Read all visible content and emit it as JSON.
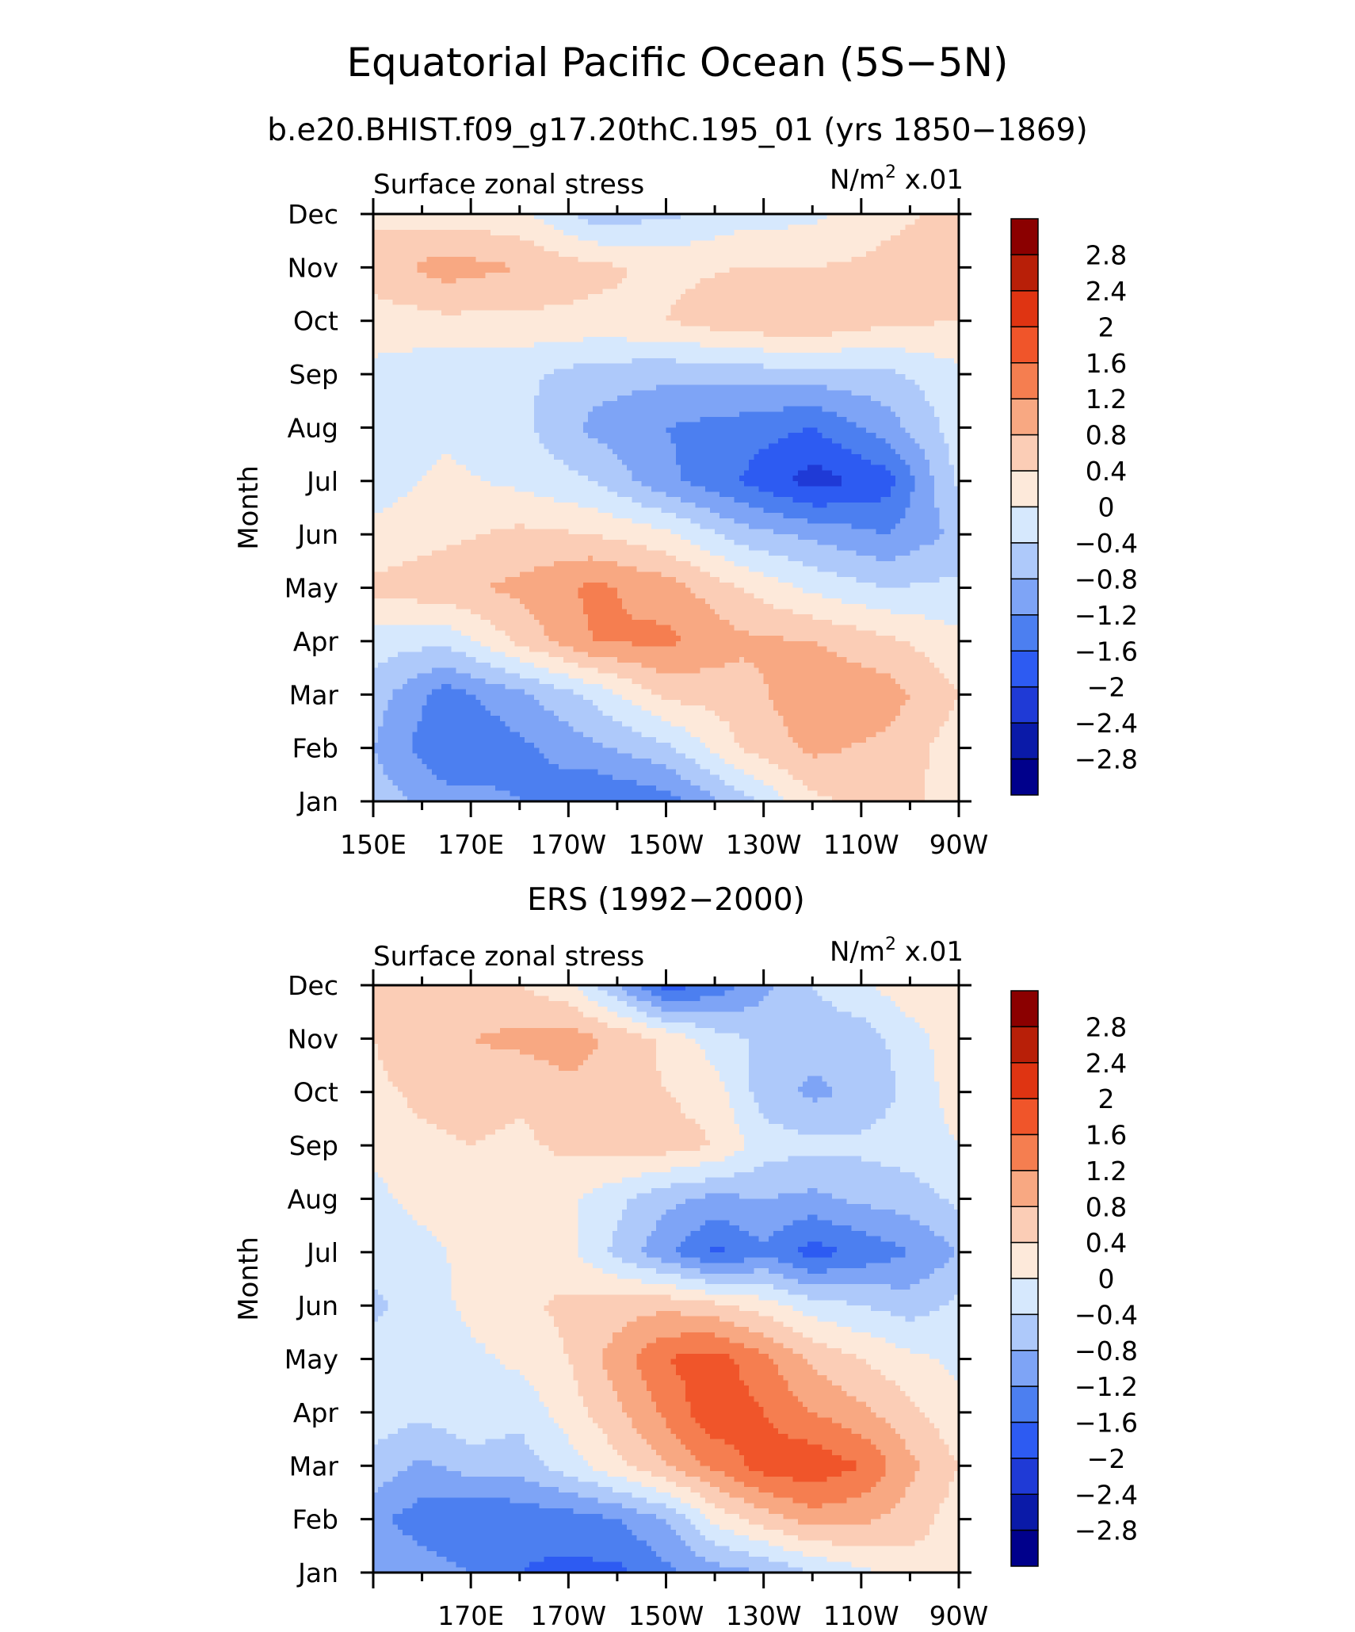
{
  "figure": {
    "title": "Equatorial Pacific Ocean (5S−5N)",
    "subtitle": "b.e20.BHIST.f09_g17.20thC.195_01 (yrs 1850−1869)"
  },
  "chart_data": [
    {
      "type": "heatmap",
      "panel_title": "",
      "left_label": "Surface zonal stress",
      "units": {
        "base": "N/m",
        "sup": "2",
        "scale": " x.01"
      },
      "ylabel": "Month",
      "y_categories": [
        "Jan",
        "Feb",
        "Mar",
        "Apr",
        "May",
        "Jun",
        "Jul",
        "Aug",
        "Sep",
        "Oct",
        "Nov",
        "Dec"
      ],
      "x_ticklabels": [
        "150E",
        "170E",
        "170W",
        "150W",
        "130W",
        "110W",
        "90W"
      ],
      "x_tick_lon": [
        150,
        170,
        190,
        210,
        230,
        250,
        270
      ],
      "xlim": [
        150,
        270
      ],
      "ylim": [
        1,
        12
      ],
      "levels": [
        -2.8,
        -2.4,
        -2,
        -1.6,
        -1.2,
        -0.8,
        -0.4,
        0,
        0.4,
        0.8,
        1.2,
        1.6,
        2,
        2.4,
        2.8
      ],
      "colorbar_labels": [
        "2.8",
        "2.4",
        "2",
        "1.6",
        "1.2",
        "0.8",
        "0.4",
        "0",
        "−0.4",
        "−0.8",
        "−1.2",
        "−1.6",
        "−2",
        "−2.4",
        "−2.8"
      ],
      "colors": [
        "#00008b",
        "#0a1aa8",
        "#1f3ad6",
        "#2d5bf2",
        "#4c7ff0",
        "#7ea4f6",
        "#aec9fa",
        "#d6e8fd",
        "#fde9da",
        "#fbcdb6",
        "#f8a882",
        "#f57e50",
        "#f0552a",
        "#df3412",
        "#b81f08",
        "#8b0000"
      ],
      "grid_lon": [
        150,
        165,
        180,
        195,
        210,
        225,
        240,
        255,
        270
      ],
      "grid_month": [
        1,
        2,
        3,
        4,
        5,
        6,
        7,
        8,
        9,
        10,
        11,
        12
      ],
      "z": [
        [
          -0.6,
          -1.0,
          -1.2,
          -1.6,
          -1.4,
          -0.6,
          0.3,
          0.6,
          0.2
        ],
        [
          -0.8,
          -1.6,
          -1.3,
          -0.9,
          -0.5,
          0.4,
          0.9,
          0.7,
          0.2
        ],
        [
          -0.6,
          -1.4,
          -0.9,
          -0.3,
          0.5,
          0.6,
          1.1,
          1.0,
          0.4
        ],
        [
          -0.2,
          -0.3,
          0.5,
          1.2,
          1.3,
          0.9,
          0.8,
          0.5,
          0.1
        ],
        [
          0.5,
          0.7,
          0.9,
          1.3,
          1.0,
          0.4,
          -0.1,
          -0.4,
          -0.3
        ],
        [
          0.1,
          0.3,
          0.5,
          0.4,
          0.1,
          -0.6,
          -0.9,
          -1.2,
          -0.7
        ],
        [
          -0.2,
          0.1,
          -0.1,
          -0.4,
          -1.1,
          -1.6,
          -2.2,
          -1.8,
          -0.3
        ],
        [
          -0.3,
          -0.1,
          -0.3,
          -0.9,
          -1.2,
          -1.4,
          -1.6,
          -1.0,
          -0.2
        ],
        [
          -0.1,
          -0.3,
          -0.3,
          -0.6,
          -0.7,
          -0.6,
          -0.6,
          -0.5,
          -0.1
        ],
        [
          0.2,
          0.3,
          0.3,
          0.3,
          0.4,
          0.7,
          0.8,
          0.5,
          0.4
        ],
        [
          0.6,
          1.0,
          0.8,
          0.5,
          0.3,
          0.4,
          0.4,
          0.5,
          0.6
        ],
        [
          0.3,
          0.2,
          0.1,
          -0.6,
          -0.5,
          -0.2,
          -0.1,
          0.3,
          0.5
        ]
      ]
    },
    {
      "type": "heatmap",
      "panel_title": "ERS (1992−2000)",
      "left_label": "Surface zonal stress",
      "units": {
        "base": "N/m",
        "sup": "2",
        "scale": " x.01"
      },
      "ylabel": "Month",
      "y_categories": [
        "Jan",
        "Feb",
        "Mar",
        "Apr",
        "May",
        "Jun",
        "Jul",
        "Aug",
        "Sep",
        "Oct",
        "Nov",
        "Dec"
      ],
      "x_ticklabels": [
        "170E",
        "170W",
        "150W",
        "130W",
        "110W",
        "90W"
      ],
      "x_tick_lon": [
        170,
        190,
        210,
        230,
        250,
        270
      ],
      "xlim": [
        150,
        270
      ],
      "ylim": [
        1,
        12
      ],
      "levels": [
        -2.8,
        -2.4,
        -2,
        -1.6,
        -1.2,
        -0.8,
        -0.4,
        0,
        0.4,
        0.8,
        1.2,
        1.6,
        2,
        2.4,
        2.8
      ],
      "colorbar_labels": [
        "2.8",
        "2.4",
        "2",
        "1.6",
        "1.2",
        "0.8",
        "0.4",
        "0",
        "−0.4",
        "−0.8",
        "−1.2",
        "−1.6",
        "−2",
        "−2.4",
        "−2.8"
      ],
      "colors": [
        "#00008b",
        "#0a1aa8",
        "#1f3ad6",
        "#2d5bf2",
        "#4c7ff0",
        "#7ea4f6",
        "#aec9fa",
        "#d6e8fd",
        "#fde9da",
        "#fbcdb6",
        "#f8a882",
        "#f57e50",
        "#f0552a",
        "#df3412",
        "#b81f08",
        "#8b0000"
      ],
      "grid_lon": [
        150,
        160,
        170,
        180,
        190,
        200,
        210,
        220,
        230,
        240,
        250,
        260,
        270
      ],
      "grid_month": [
        1,
        2,
        3,
        4,
        5,
        6,
        7,
        8,
        9,
        10,
        11,
        12
      ],
      "z": [
        [
          -0.8,
          -1.0,
          -1.2,
          -1.6,
          -1.7,
          -1.7,
          -1.3,
          -1.0,
          -0.8,
          -0.4,
          -0.1,
          0.2,
          0.3
        ],
        [
          -1.1,
          -1.4,
          -1.6,
          -1.5,
          -1.4,
          -1.2,
          -0.8,
          0.1,
          0.6,
          1.0,
          0.9,
          0.6,
          0.2
        ],
        [
          -0.5,
          -0.9,
          -0.6,
          -0.6,
          -0.2,
          0.3,
          0.8,
          1.3,
          1.8,
          1.9,
          1.6,
          0.9,
          0.4
        ],
        [
          -0.2,
          -0.3,
          -0.1,
          -0.3,
          0.2,
          0.7,
          1.3,
          1.9,
          1.6,
          1.2,
          0.9,
          0.5,
          0.1
        ],
        [
          -0.2,
          -0.3,
          -0.1,
          0.1,
          0.4,
          1.0,
          1.6,
          1.8,
          1.3,
          0.7,
          0.4,
          0.1,
          -0.1
        ],
        [
          -0.5,
          -0.2,
          0.1,
          0.3,
          0.5,
          0.6,
          0.7,
          0.5,
          0.2,
          -0.2,
          -0.4,
          -0.6,
          -0.3
        ],
        [
          -0.2,
          -0.1,
          0.1,
          0.2,
          0.1,
          -0.5,
          -1.1,
          -1.7,
          -1.3,
          -1.8,
          -1.5,
          -1.2,
          -0.8
        ],
        [
          -0.1,
          0.1,
          0.2,
          0.3,
          0.1,
          -0.3,
          -0.7,
          -0.9,
          -0.8,
          -0.9,
          -0.7,
          -0.6,
          -0.3
        ],
        [
          0.1,
          0.3,
          0.4,
          0.3,
          0.5,
          0.6,
          0.6,
          0.4,
          -0.2,
          -0.3,
          -0.3,
          -0.2,
          0.0
        ],
        [
          0.3,
          0.5,
          0.6,
          0.5,
          0.7,
          0.6,
          0.4,
          0.2,
          -0.6,
          -0.9,
          -0.7,
          -0.3,
          0.2
        ],
        [
          0.4,
          0.7,
          0.8,
          0.9,
          1.0,
          0.7,
          0.3,
          -0.2,
          -0.5,
          -0.6,
          -0.6,
          -0.2,
          0.3
        ],
        [
          0.6,
          0.8,
          0.5,
          0.4,
          0.1,
          -0.8,
          -1.8,
          -1.5,
          -0.9,
          -0.4,
          -0.1,
          0.3,
          0.4
        ]
      ]
    }
  ]
}
